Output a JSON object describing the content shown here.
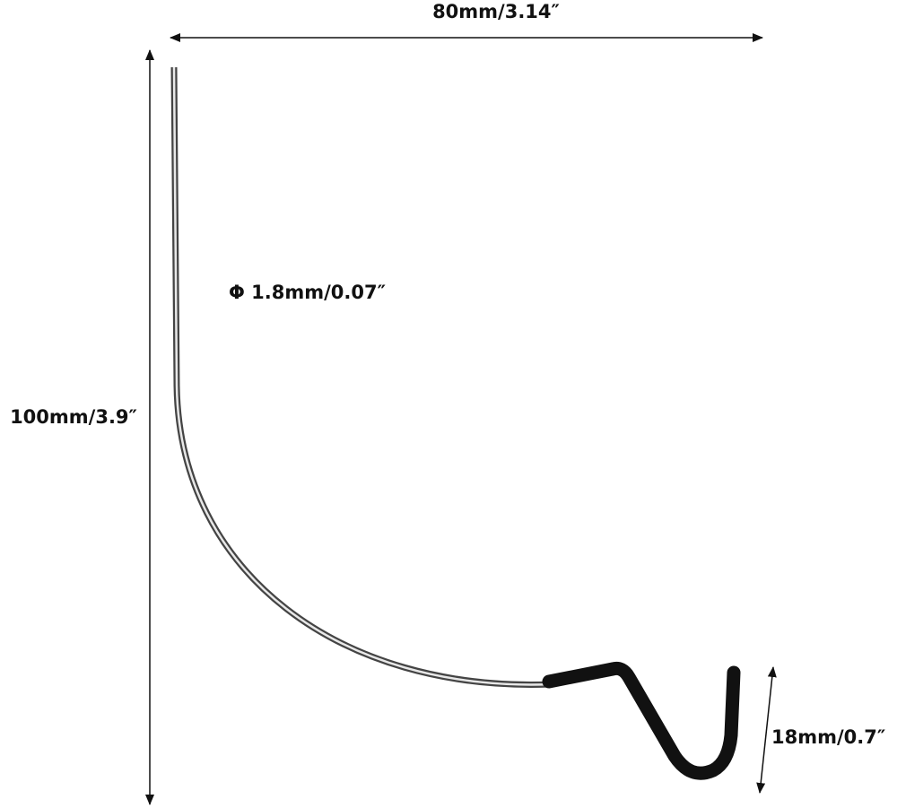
{
  "dimensions": {
    "width": "80mm/3.14″",
    "height": "100mm/3.9″",
    "diameter": "Φ 1.8mm/0.07″",
    "hook": "18mm/0.7″"
  }
}
